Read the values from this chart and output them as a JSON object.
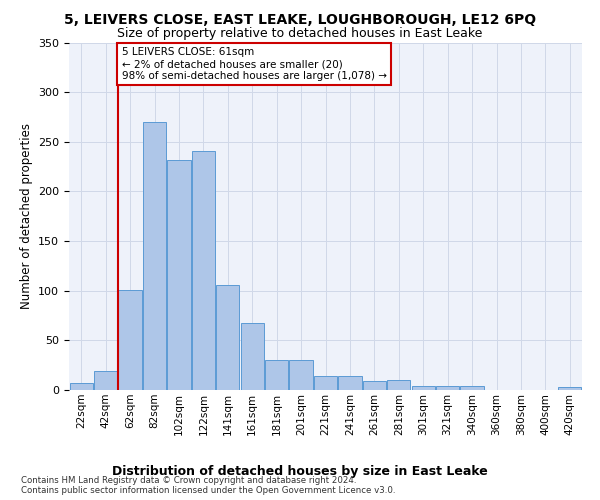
{
  "title": "5, LEIVERS CLOSE, EAST LEAKE, LOUGHBOROUGH, LE12 6PQ",
  "subtitle": "Size of property relative to detached houses in East Leake",
  "xlabel": "Distribution of detached houses by size in East Leake",
  "ylabel": "Number of detached properties",
  "bins": [
    "22sqm",
    "42sqm",
    "62sqm",
    "82sqm",
    "102sqm",
    "122sqm",
    "141sqm",
    "161sqm",
    "181sqm",
    "201sqm",
    "221sqm",
    "241sqm",
    "261sqm",
    "281sqm",
    "301sqm",
    "321sqm",
    "340sqm",
    "360sqm",
    "380sqm",
    "400sqm",
    "420sqm"
  ],
  "bar_values": [
    7,
    19,
    101,
    270,
    232,
    241,
    106,
    67,
    30,
    30,
    14,
    14,
    9,
    10,
    4,
    4,
    4,
    0,
    0,
    0,
    3
  ],
  "bar_color": "#aec6e8",
  "bar_edge_color": "#5b9bd5",
  "grid_color": "#d0d8e8",
  "background_color": "#eef2fa",
  "vline_x": 1.5,
  "annotation_text": "5 LEIVERS CLOSE: 61sqm\n← 2% of detached houses are smaller (20)\n98% of semi-detached houses are larger (1,078) →",
  "annotation_box_color": "#cc0000",
  "footer1": "Contains HM Land Registry data © Crown copyright and database right 2024.",
  "footer2": "Contains public sector information licensed under the Open Government Licence v3.0.",
  "ylim": [
    0,
    350
  ],
  "title_fontsize": 10,
  "subtitle_fontsize": 9,
  "xlabel_fontsize": 9,
  "ylabel_fontsize": 8.5,
  "tick_fontsize": 7.5,
  "annot_fontsize": 7.5
}
